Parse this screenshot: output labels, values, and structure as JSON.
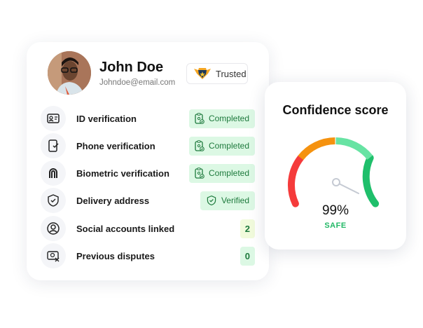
{
  "profile": {
    "name": "John Doe",
    "email": "Johndoe@email.com",
    "badge": "Trusted"
  },
  "checks": [
    {
      "label": "ID verification",
      "status": "Completed",
      "icon": "id-card-icon"
    },
    {
      "label": "Phone verification",
      "status": "Completed",
      "icon": "phone-check-icon"
    },
    {
      "label": "Biometric verification",
      "status": "Completed",
      "icon": "fingerprint-icon"
    },
    {
      "label": "Delivery address",
      "status": "Verified",
      "icon": "shield-check-icon"
    },
    {
      "label": "Social accounts linked",
      "status": "2",
      "icon": "user-circle-icon"
    },
    {
      "label": "Previous disputes",
      "status": "0",
      "icon": "dispute-icon"
    }
  ],
  "confidence": {
    "title": "Confidence score",
    "value": "99%",
    "level": "SAFE",
    "score_percent": 99,
    "colors": {
      "red": "#f53b3b",
      "orange": "#f5920f",
      "light_green": "#67e3a3",
      "green": "#1fbf6b"
    }
  }
}
